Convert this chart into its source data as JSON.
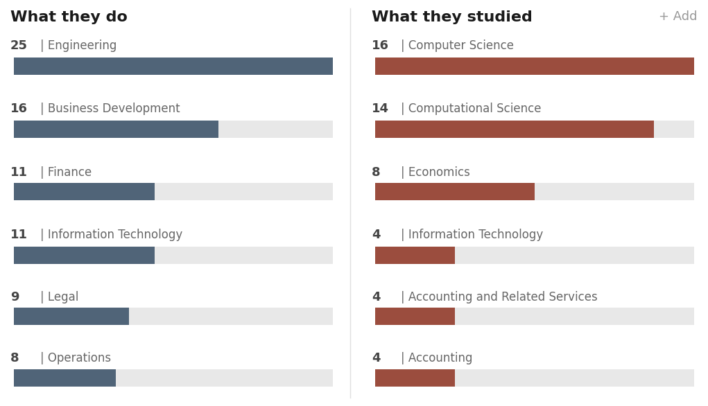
{
  "left_title": "What they do",
  "right_title": "What they studied",
  "right_addon": "+ Add",
  "left_items": [
    {
      "label": "Engineering",
      "value": 25,
      "max": 25
    },
    {
      "label": "Business Development",
      "value": 16,
      "max": 25
    },
    {
      "label": "Finance",
      "value": 11,
      "max": 25
    },
    {
      "label": "Information Technology",
      "value": 11,
      "max": 25
    },
    {
      "label": "Legal",
      "value": 9,
      "max": 25
    },
    {
      "label": "Operations",
      "value": 8,
      "max": 25
    }
  ],
  "right_items": [
    {
      "label": "Computer Science",
      "value": 16,
      "max": 16
    },
    {
      "label": "Computational Science",
      "value": 14,
      "max": 16
    },
    {
      "label": "Economics",
      "value": 8,
      "max": 16
    },
    {
      "label": "Information Technology",
      "value": 4,
      "max": 16
    },
    {
      "label": "Accounting and Related Services",
      "value": 4,
      "max": 16
    },
    {
      "label": "Accounting",
      "value": 4,
      "max": 16
    }
  ],
  "left_bar_color": "#506478",
  "right_bar_color": "#9B4D3E",
  "bg_bar_color": "#E8E8E8",
  "background_color": "#FFFFFF",
  "title_fontsize": 16,
  "label_fontsize": 12,
  "number_fontsize": 13,
  "title_color": "#1a1a1a",
  "label_color": "#666666",
  "number_color": "#444444",
  "divider_color": "#E0E0E0"
}
